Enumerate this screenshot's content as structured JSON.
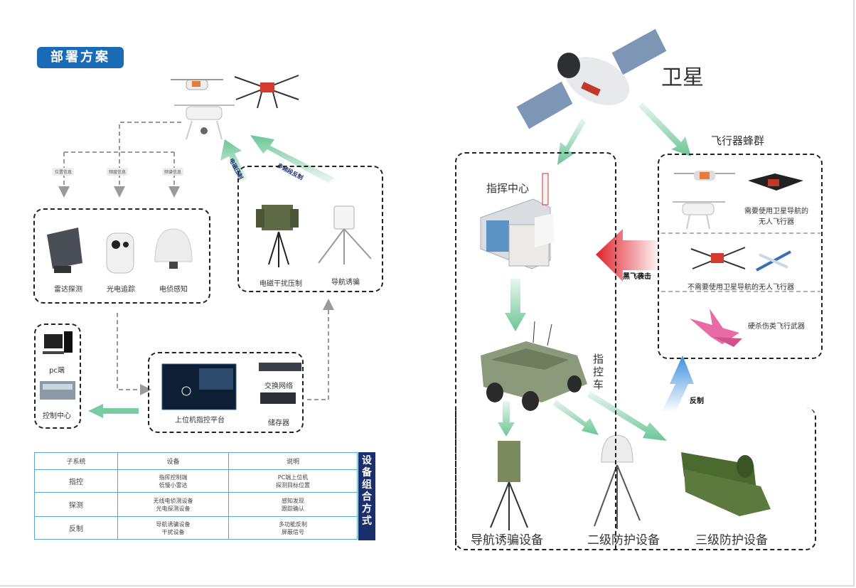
{
  "header": {
    "badge": "部署方案"
  },
  "drone_links": [
    "位置信息",
    "频度信息",
    "频谱信息"
  ],
  "detect_box": {
    "radar": "雷达探测",
    "eo": "光电追踪",
    "rf": "电侦感知"
  },
  "jam_box": {
    "em": "电磁干扰压制",
    "nav": "导航诱骗"
  },
  "arrows": {
    "em_suppress": "电磁压制",
    "multi_reflect": "多频段反制",
    "black_fly": "黑飞袭击",
    "counter": "反制"
  },
  "left_col": {
    "pc": "pc端",
    "control": "控制中心"
  },
  "platform": {
    "label": "上位机指控平台",
    "switch": "交换网络",
    "storage": "储存器"
  },
  "table": {
    "headers": [
      "子系统",
      "设备",
      "说明"
    ],
    "rows": [
      {
        "sub": "指控",
        "dev": [
          "指挥控制端",
          "低慢小雷达"
        ],
        "desc": [
          "PC端上位机",
          "探测目标位置"
        ]
      },
      {
        "sub": "探测",
        "dev": [
          "无线电侦测设备",
          "光电探测设备"
        ],
        "desc": [
          "感知发现",
          "跟踪确认"
        ]
      },
      {
        "sub": "反制",
        "dev": [
          "导航诱骗设备",
          "干扰设备"
        ],
        "desc": [
          "多功能反制",
          "屏蔽信号"
        ]
      }
    ],
    "side_title": "设备组合方式"
  },
  "right": {
    "satellite": "卫星",
    "swarm": "飞行器蜂群",
    "command_center": "指挥中心",
    "vehicle": "指控车",
    "swarm_items": [
      "需要使用卫星导航的无人飞行器",
      "不需要使用卫星导航的无人飞行器",
      "硬杀伤类飞行武器"
    ],
    "swarm_item1_lines": [
      "需要使用卫星导航的",
      "无人飞行器"
    ],
    "equipment": [
      "导航诱骗设备",
      "二级防护设备",
      "三级防护设备"
    ]
  },
  "colors": {
    "accent": "#1a6bb5",
    "arrow_green": "#6cc597",
    "arrow_red": "#e0202a",
    "arrow_blue": "#3f8fe0",
    "dash": "#9a9a9a"
  },
  "icons": [
    "quadcopter-icon",
    "agri-drone-icon",
    "radar-icon",
    "ptz-camera-icon",
    "dome-antenna-icon",
    "jammer-turret-icon",
    "nav-spoofer-icon",
    "pc-icon",
    "control-room-icon",
    "platform-screen-icon",
    "switch-icon",
    "storage-icon",
    "satellite-icon",
    "building-icon",
    "vehicle-icon",
    "fpv-drone-icon",
    "fixed-wing-icon",
    "missile-icon",
    "launcher-truck-icon"
  ]
}
